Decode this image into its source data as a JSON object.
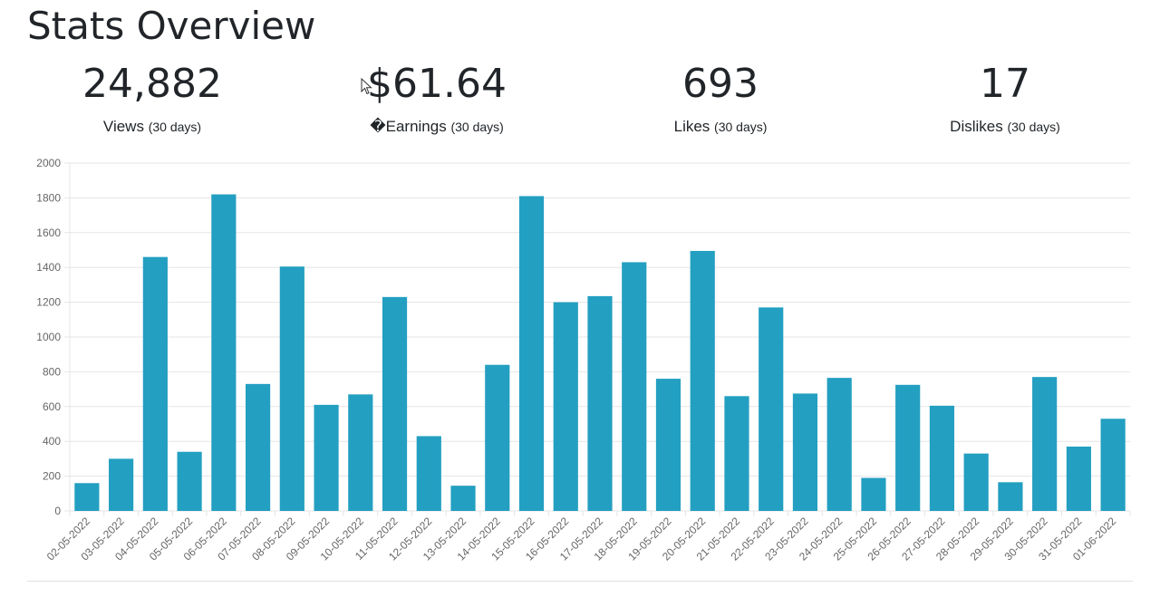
{
  "header": {
    "title": "Stats Overview"
  },
  "stats": [
    {
      "value": "24,882",
      "label": "Views",
      "period": "(30 days)"
    },
    {
      "value": "$61.64",
      "label": "�Earnings",
      "period": "(30 days)"
    },
    {
      "value": "693",
      "label": "Likes",
      "period": "(30 days)"
    },
    {
      "value": "17",
      "label": "Dislikes",
      "period": "(30 days)"
    }
  ],
  "colors": {
    "bar": "#239fc1",
    "grid": "#e5e5e5",
    "tick_text": "#666666"
  },
  "chart_data": {
    "type": "bar",
    "categories": [
      "02-05-2022",
      "03-05-2022",
      "04-05-2022",
      "05-05-2022",
      "06-05-2022",
      "07-05-2022",
      "08-05-2022",
      "09-05-2022",
      "10-05-2022",
      "11-05-2022",
      "12-05-2022",
      "13-05-2022",
      "14-05-2022",
      "15-05-2022",
      "16-05-2022",
      "17-05-2022",
      "18-05-2022",
      "19-05-2022",
      "20-05-2022",
      "21-05-2022",
      "22-05-2022",
      "23-05-2022",
      "24-05-2022",
      "25-05-2022",
      "26-05-2022",
      "27-05-2022",
      "28-05-2022",
      "29-05-2022",
      "30-05-2022",
      "31-05-2022",
      "01-06-2022"
    ],
    "values": [
      160,
      300,
      1460,
      340,
      1820,
      730,
      1405,
      610,
      670,
      1230,
      430,
      145,
      840,
      1810,
      1200,
      1235,
      1430,
      760,
      1495,
      660,
      1170,
      675,
      765,
      190,
      725,
      605,
      330,
      165,
      770,
      370,
      530
    ],
    "ylim": [
      0,
      2000
    ],
    "yticks": [
      0,
      200,
      400,
      600,
      800,
      1000,
      1200,
      1400,
      1600,
      1800,
      2000
    ],
    "grid": true,
    "legend": "none"
  }
}
